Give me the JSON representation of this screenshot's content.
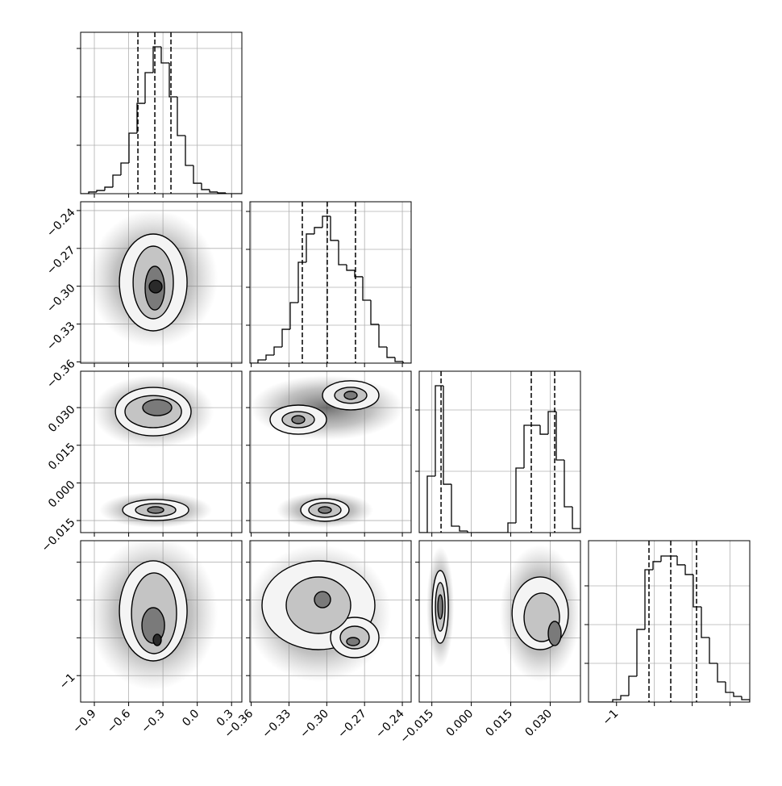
{
  "chart_data": [
    {
      "type": "histogram",
      "color": "#000000",
      "grid": true,
      "xlim": [
        -1.02,
        0.39
      ],
      "xticks": [
        -0.9,
        -0.6,
        -0.3,
        0,
        0.3
      ],
      "ylim": [
        0,
        1667
      ],
      "yticks": [
        500,
        1000,
        1500
      ],
      "bins": [
        -1.02,
        -0.9495,
        -0.879,
        -0.8085,
        -0.738,
        -0.6675,
        -0.597,
        -0.5265,
        -0.456,
        -0.3855,
        -0.315,
        -0.2445,
        -0.174,
        -0.1035,
        -0.033,
        0.0375,
        0.108,
        0.1785,
        0.249,
        0.3195,
        0.39
      ],
      "values": [
        0,
        17,
        33,
        67,
        192,
        317,
        625,
        933,
        1250,
        1517,
        1350,
        1000,
        600,
        292,
        108,
        42,
        17,
        8,
        0,
        0
      ],
      "quantiles": [
        -0.519,
        -0.371,
        -0.23
      ]
    },
    {
      "type": "contour",
      "color": "#000000",
      "grid": true,
      "xlim": [
        -1.02,
        0.39
      ],
      "xticks": [
        -0.9,
        -0.6,
        -0.3,
        0,
        0.3
      ],
      "ylim": [
        -0.361,
        -0.233
      ],
      "yticks": [
        {
          "value": -0.36,
          "label": "−0.36"
        },
        {
          "value": -0.33,
          "label": "−0.33"
        },
        {
          "value": -0.3,
          "label": "−0.30"
        },
        {
          "value": -0.27,
          "label": "−0.27"
        },
        {
          "value": -0.24,
          "label": "−0.24"
        }
      ],
      "clouds": [
        {
          "cx": -0.385,
          "cy": -0.294,
          "rx": 0.564,
          "ry": 0.0544
        }
      ],
      "blobs": [
        [
          {
            "cx": -0.385,
            "cy": -0.297,
            "rx": 0.296,
            "ry": 0.0384
          },
          {
            "cx": -0.385,
            "cy": -0.297,
            "rx": 0.176,
            "ry": 0.0288
          },
          {
            "cx": -0.371,
            "cy": -0.3015,
            "rx": 0.085,
            "ry": 0.0173
          },
          {
            "cx": -0.364,
            "cy": -0.3003,
            "rx": 0.056,
            "ry": 0.005
          }
        ]
      ]
    },
    {
      "type": "histogram",
      "color": "#000000",
      "grid": true,
      "xlim": [
        -0.361,
        -0.233
      ],
      "xticks": [
        -0.36,
        -0.33,
        -0.3,
        -0.27,
        -0.24
      ],
      "ylim": [
        0,
        1702
      ],
      "yticks": [
        400,
        800,
        1200,
        1600
      ],
      "bins": [
        -0.361,
        -0.3546,
        -0.3482,
        -0.3418,
        -0.3354,
        -0.329,
        -0.3226,
        -0.3162,
        -0.3098,
        -0.3034,
        -0.297,
        -0.2906,
        -0.2842,
        -0.2778,
        -0.2714,
        -0.265,
        -0.2586,
        -0.2522,
        -0.2458,
        -0.2394,
        -0.233
      ],
      "values": [
        0,
        34,
        85,
        170,
        357,
        638,
        1064,
        1362,
        1430,
        1549,
        1294,
        1038,
        979,
        911,
        664,
        409,
        170,
        60,
        17,
        0
      ],
      "quantiles": [
        -0.3194,
        -0.2996,
        -0.2772
      ]
    },
    {
      "type": "contour",
      "color": "#000000",
      "grid": true,
      "xlim": [
        -1.02,
        0.39
      ],
      "xticks": [
        -0.9,
        -0.6,
        -0.3,
        0,
        0.3
      ],
      "ylim": [
        -0.0198,
        0.0445
      ],
      "yticks": [
        {
          "value": -0.015,
          "label": "−0.015"
        },
        {
          "value": 0,
          "label": "0.000"
        },
        {
          "value": 0.015,
          "label": "0.015"
        },
        {
          "value": 0.03,
          "label": "0.030"
        }
      ],
      "clouds": [
        {
          "cx": -0.385,
          "cy": 0.0284,
          "rx": 0.529,
          "ry": 0.0145
        },
        {
          "cx": -0.364,
          "cy": -0.0108,
          "rx": 0.494,
          "ry": 0.0071
        }
      ],
      "blobs": [
        [
          {
            "cx": -0.385,
            "cy": 0.0284,
            "rx": 0.331,
            "ry": 0.00965
          },
          {
            "cx": -0.385,
            "cy": 0.0284,
            "rx": 0.247,
            "ry": 0.0064
          },
          {
            "cx": -0.35,
            "cy": 0.03,
            "rx": 0.127,
            "ry": 0.0032
          }
        ],
        [
          {
            "cx": -0.364,
            "cy": -0.0108,
            "rx": 0.289,
            "ry": 0.0042
          },
          {
            "cx": -0.364,
            "cy": -0.0108,
            "rx": 0.176,
            "ry": 0.0026
          },
          {
            "cx": -0.364,
            "cy": -0.0108,
            "rx": 0.0705,
            "ry": 0.0013
          }
        ]
      ]
    },
    {
      "type": "contour",
      "color": "#000000",
      "grid": true,
      "xlim": [
        -0.361,
        -0.233
      ],
      "xticks": [
        -0.36,
        -0.33,
        -0.3,
        -0.27,
        -0.24
      ],
      "ylim": [
        -0.0198,
        0.0445
      ],
      "yticks": [
        -0.015,
        0,
        0.015,
        0.03
      ],
      "clouds": [
        {
          "cx": -0.2998,
          "cy": 0.03,
          "rx": 0.0608,
          "ry": 0.0129
        },
        {
          "cx": -0.3015,
          "cy": -0.0108,
          "rx": 0.0384,
          "ry": 0.0071
        }
      ],
      "blobs": [
        [
          {
            "cx": -0.3226,
            "cy": 0.0252,
            "rx": 0.0224,
            "ry": 0.0058
          },
          {
            "cx": -0.3226,
            "cy": 0.0252,
            "rx": 0.0128,
            "ry": 0.0032
          },
          {
            "cx": -0.3226,
            "cy": 0.0252,
            "rx": 0.0051,
            "ry": 0.0016
          }
        ],
        [
          {
            "cx": -0.281,
            "cy": 0.0349,
            "rx": 0.0224,
            "ry": 0.0058
          },
          {
            "cx": -0.281,
            "cy": 0.0349,
            "rx": 0.0128,
            "ry": 0.0032
          },
          {
            "cx": -0.281,
            "cy": 0.0349,
            "rx": 0.0051,
            "ry": 0.0016
          }
        ],
        [
          {
            "cx": -0.3015,
            "cy": -0.0108,
            "rx": 0.0192,
            "ry": 0.0045
          },
          {
            "cx": -0.3015,
            "cy": -0.0108,
            "rx": 0.0128,
            "ry": 0.0029
          },
          {
            "cx": -0.3015,
            "cy": -0.0108,
            "rx": 0.0051,
            "ry": 0.0013
          }
        ]
      ]
    },
    {
      "type": "histogram",
      "color": "#000000",
      "grid": true,
      "xlim": [
        -0.0198,
        0.0415
      ],
      "xticks": [
        -0.015,
        0,
        0.015,
        0.03
      ],
      "ylim": [
        0,
        2632
      ],
      "yticks": [
        1000,
        2000
      ],
      "bins": [
        -0.0198,
        -0.01674,
        -0.01367,
        -0.0106,
        -0.00754,
        -0.00448,
        -0.00141,
        0.00166,
        0.00472,
        0.00779,
        0.01085,
        0.01392,
        0.01698,
        0.02005,
        0.02311,
        0.02618,
        0.02924,
        0.03231,
        0.03537,
        0.03844,
        0.0415
      ],
      "values": [
        0,
        921,
        2395,
        789,
        105,
        26,
        0,
        0,
        0,
        0,
        0,
        158,
        1053,
        1750,
        1750,
        1605,
        1974,
        1184,
        421,
        66
      ],
      "quantiles": [
        -0.0115,
        0.0228,
        0.0317
      ]
    },
    {
      "type": "contour",
      "color": "#000000",
      "grid": true,
      "xlim": [
        -1.02,
        0.39
      ],
      "xticks": [
        {
          "value": -0.9,
          "label": "−0.9"
        },
        {
          "value": -0.6,
          "label": "−0.6"
        },
        {
          "value": -0.3,
          "label": "−0.3"
        },
        {
          "value": 0,
          "label": "0.0"
        },
        {
          "value": 0.3,
          "label": "0.3"
        }
      ],
      "ylim": [
        -1.7,
        2.57
      ],
      "yticks": [
        {
          "value": -1,
          "label": "−1"
        },
        0,
        1,
        2
      ],
      "clouds": [
        {
          "cx": -0.385,
          "cy": 0.649,
          "rx": 0.564,
          "ry": 2.03
        }
      ],
      "blobs": [
        [
          {
            "cx": -0.385,
            "cy": 0.713,
            "rx": 0.296,
            "ry": 1.324
          },
          {
            "cx": -0.378,
            "cy": 0.649,
            "rx": 0.197,
            "ry": 1.068
          },
          {
            "cx": -0.385,
            "cy": 0.328,
            "rx": 0.099,
            "ry": 0.47
          },
          {
            "cx": -0.35,
            "cy": -0.056,
            "rx": 0.035,
            "ry": 0.15
          }
        ]
      ]
    },
    {
      "type": "contour",
      "color": "#000000",
      "grid": true,
      "xlim": [
        -0.361,
        -0.233
      ],
      "xticks": [
        {
          "value": -0.36,
          "label": "−0.36"
        },
        {
          "value": -0.33,
          "label": "−0.33"
        },
        {
          "value": -0.3,
          "label": "−0.30"
        },
        {
          "value": -0.27,
          "label": "−0.27"
        },
        {
          "value": -0.24,
          "label": "−0.24"
        }
      ],
      "ylim": [
        -1.7,
        2.57
      ],
      "yticks": [
        -1,
        0,
        1,
        2
      ],
      "clouds": [
        {
          "cx": -0.3066,
          "cy": 0.649,
          "rx": 0.0576,
          "ry": 1.815
        }
      ],
      "blobs": [
        [
          {
            "cx": -0.3066,
            "cy": 0.862,
            "rx": 0.0448,
            "ry": 1.174
          },
          {
            "cx": -0.3066,
            "cy": 0.862,
            "rx": 0.0256,
            "ry": 0.747
          },
          {
            "cx": -0.3034,
            "cy": 1.011,
            "rx": 0.0064,
            "ry": 0.2135
          }
        ],
        [
          {
            "cx": -0.2778,
            "cy": 0.008,
            "rx": 0.0192,
            "ry": 0.534
          },
          {
            "cx": -0.2778,
            "cy": 0.008,
            "rx": 0.0115,
            "ry": 0.299
          },
          {
            "cx": -0.2791,
            "cy": -0.099,
            "rx": 0.0051,
            "ry": 0.107
          }
        ]
      ]
    },
    {
      "type": "contour",
      "color": "#000000",
      "grid": true,
      "xlim": [
        -0.0198,
        0.0415
      ],
      "xticks": [
        {
          "value": -0.015,
          "label": "−0.015"
        },
        {
          "value": 0,
          "label": "0.000"
        },
        {
          "value": 0.015,
          "label": "0.015"
        },
        {
          "value": 0.03,
          "label": "0.030"
        }
      ],
      "ylim": [
        -1.7,
        2.57
      ],
      "yticks": [
        -1,
        0,
        1,
        2
      ],
      "clouds": [
        {
          "cx": -0.0118,
          "cy": 0.819,
          "rx": 0.0052,
          "ry": 1.601
        },
        {
          "cx": 0.0262,
          "cy": 0.649,
          "rx": 0.0153,
          "ry": 1.815
        }
      ],
      "blobs": [
        [
          {
            "cx": -0.0118,
            "cy": 0.819,
            "rx": 0.00307,
            "ry": 0.961
          },
          {
            "cx": -0.0118,
            "cy": 0.819,
            "rx": 0.00184,
            "ry": 0.641
          },
          {
            "cx": -0.0118,
            "cy": 0.819,
            "rx": 0.00092,
            "ry": 0.32
          }
        ],
        [
          {
            "cx": 0.0262,
            "cy": 0.649,
            "rx": 0.0107,
            "ry": 0.961
          },
          {
            "cx": 0.0268,
            "cy": 0.542,
            "rx": 0.00674,
            "ry": 0.641
          },
          {
            "cx": 0.0317,
            "cy": 0.115,
            "rx": 0.00245,
            "ry": 0.32
          }
        ]
      ]
    },
    {
      "type": "histogram",
      "color": "#000000",
      "grid": true,
      "xlim": [
        -1.74,
        2.52
      ],
      "xticks": [
        {
          "value": -1,
          "label": "−1"
        },
        0,
        1,
        2
      ],
      "ylim": [
        0,
        2083
      ],
      "yticks": [
        500,
        1000,
        1500
      ],
      "bins": [
        -1.74,
        -1.527,
        -1.314,
        -1.101,
        -0.888,
        -0.675,
        -0.462,
        -0.249,
        -0.036,
        0.177,
        0.39,
        0.603,
        0.816,
        1.029,
        1.242,
        1.455,
        1.668,
        1.881,
        2.094,
        2.307,
        2.52
      ],
      "values": [
        0,
        0,
        0,
        31,
        83,
        333,
        938,
        1708,
        1813,
        1885,
        1885,
        1771,
        1646,
        1229,
        833,
        500,
        260,
        125,
        73,
        31
      ],
      "quantiles": [
        -0.1425,
        0.433,
        1.114
      ]
    }
  ]
}
